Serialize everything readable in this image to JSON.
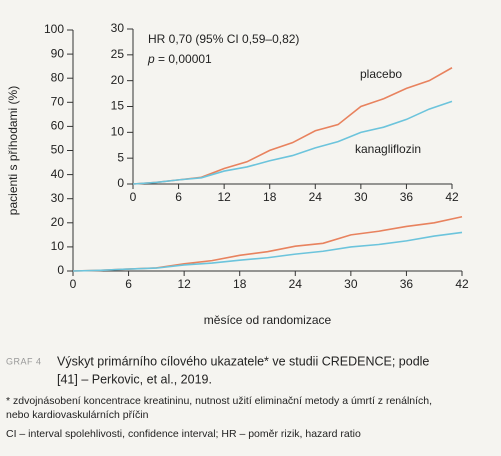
{
  "chart_data": [
    {
      "type": "line",
      "ylabel": "pacienti s příhodami (%)",
      "xlabel": "měsíce od randomizace",
      "x": [
        0,
        3,
        6,
        9,
        12,
        15,
        18,
        21,
        24,
        27,
        30,
        33,
        36,
        39,
        42
      ],
      "series": [
        {
          "color": "#e8825e",
          "values": [
            0,
            0.3,
            0.8,
            1.3,
            3,
            4.3,
            6.5,
            8,
            10.3,
            11.5,
            15,
            16.5,
            18.5,
            20,
            22.5
          ]
        },
        {
          "color": "#6cc4dc",
          "values": [
            0,
            0.3,
            0.8,
            1.2,
            2.5,
            3.3,
            4.5,
            5.5,
            7,
            8.2,
            10,
            11,
            12.5,
            14.5,
            16
          ]
        }
      ],
      "xlim": [
        0,
        42
      ],
      "xticks": [
        0,
        6,
        12,
        18,
        24,
        30,
        36,
        42
      ],
      "ylim": [
        0,
        100
      ],
      "yticks": [
        0,
        10,
        20,
        30,
        40,
        50,
        60,
        70,
        80,
        90,
        100
      ]
    },
    {
      "type": "line",
      "annotations": [
        "HR 0,70 (95% CI 0,59–0,82)",
        "p",
        "= 0,00001"
      ],
      "x": [
        0,
        3,
        6,
        9,
        12,
        15,
        18,
        21,
        24,
        27,
        30,
        33,
        36,
        39,
        42
      ],
      "series": [
        {
          "name": "placebo",
          "color": "#e8825e",
          "values": [
            0,
            0.3,
            0.8,
            1.3,
            3,
            4.3,
            6.5,
            8,
            10.3,
            11.5,
            15,
            16.5,
            18.5,
            20,
            22.5
          ]
        },
        {
          "name": "kanagliflozin",
          "color": "#6cc4dc",
          "values": [
            0,
            0.3,
            0.8,
            1.2,
            2.5,
            3.3,
            4.5,
            5.5,
            7,
            8.2,
            10,
            11,
            12.5,
            14.5,
            16
          ]
        }
      ],
      "xlim": [
        0,
        42
      ],
      "xticks": [
        0,
        6,
        12,
        18,
        24,
        30,
        36,
        42
      ],
      "ylim": [
        0,
        30
      ],
      "yticks": [
        0,
        5,
        10,
        15,
        20,
        25,
        30
      ]
    }
  ],
  "caption": {
    "label": "GRAF 4",
    "title": [
      "Výskyt primárního cílového ukazatele* ve studii CREDENCE; podle",
      "[41] – Perkovic, et al., 2019."
    ],
    "notes": [
      "* zdvojnásobení koncentrace kreatininu, nutnost užití eliminační metody a úmrtí z renálních,",
      "nebo kardiovaskulárních příčin",
      "CI – interval spolehlivosti, confidence interval; HR – poměr rizik, hazard ratio"
    ]
  }
}
